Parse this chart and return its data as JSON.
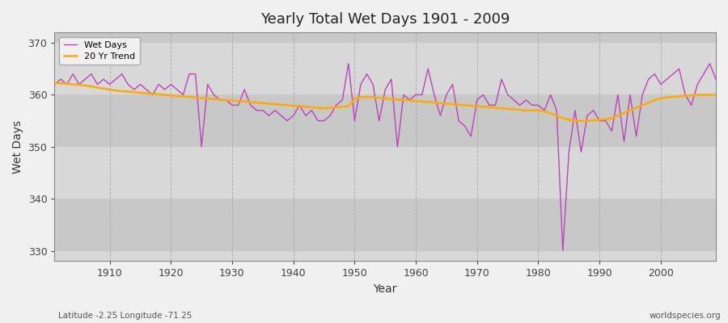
{
  "title": "Yearly Total Wet Days 1901 - 2009",
  "xlabel": "Year",
  "ylabel": "Wet Days",
  "subtitle_left": "Latitude -2.25 Longitude -71.25",
  "subtitle_right": "worldspecies.org",
  "ylim": [
    328,
    372
  ],
  "xlim": [
    1901,
    2009
  ],
  "yticks": [
    330,
    340,
    350,
    360,
    370
  ],
  "xticks": [
    1910,
    1920,
    1930,
    1940,
    1950,
    1960,
    1970,
    1980,
    1990,
    2000
  ],
  "line_color": "#bb44bb",
  "trend_color": "#ffaa00",
  "fig_bg": "#f0f0f0",
  "plot_bg": "#d8d8d8",
  "band_colors": [
    "#d8d8d8",
    "#cccccc"
  ],
  "band_ranges": [
    [
      328,
      330
    ],
    [
      330,
      340
    ],
    [
      340,
      350
    ],
    [
      350,
      360
    ],
    [
      360,
      370
    ],
    [
      370,
      372
    ]
  ],
  "wet_days": [
    362,
    363,
    362,
    364,
    362,
    363,
    364,
    362,
    363,
    362,
    363,
    364,
    362,
    361,
    362,
    361,
    360,
    362,
    361,
    362,
    361,
    360,
    364,
    364,
    350,
    362,
    360,
    359,
    359,
    358,
    358,
    361,
    358,
    357,
    357,
    356,
    357,
    356,
    355,
    356,
    358,
    356,
    357,
    355,
    355,
    356,
    358,
    359,
    366,
    355,
    362,
    364,
    362,
    355,
    361,
    363,
    350,
    360,
    359,
    360,
    360,
    365,
    360,
    356,
    360,
    362,
    355,
    354,
    352,
    359,
    360,
    358,
    358,
    363,
    360,
    359,
    358,
    359,
    358,
    358,
    357,
    360,
    357,
    330,
    349,
    357,
    349,
    356,
    357,
    355,
    355,
    353,
    360,
    351,
    360,
    352,
    360,
    363,
    364,
    362,
    363,
    364,
    365,
    360,
    358,
    362,
    364,
    366,
    363
  ],
  "trend": [
    362.3,
    362.2,
    362.1,
    362.0,
    361.9,
    361.8,
    361.6,
    361.4,
    361.2,
    361.0,
    360.8,
    360.7,
    360.6,
    360.5,
    360.4,
    360.3,
    360.2,
    360.1,
    360.0,
    359.9,
    359.8,
    359.7,
    359.6,
    359.5,
    359.4,
    359.3,
    359.2,
    359.1,
    359.0,
    358.9,
    358.8,
    358.7,
    358.6,
    358.5,
    358.4,
    358.3,
    358.2,
    358.1,
    358.0,
    357.9,
    357.8,
    357.7,
    357.6,
    357.5,
    357.4,
    357.5,
    357.6,
    357.7,
    357.8,
    359.2,
    359.5,
    359.6,
    359.5,
    359.4,
    359.3,
    359.2,
    359.1,
    359.0,
    358.9,
    358.8,
    358.7,
    358.6,
    358.5,
    358.4,
    358.3,
    358.2,
    358.1,
    358.0,
    357.9,
    357.8,
    357.7,
    357.6,
    357.5,
    357.4,
    357.3,
    357.2,
    357.1,
    357.0,
    357.0,
    357.0,
    356.8,
    356.4,
    356.0,
    355.5,
    355.2,
    355.0,
    355.0,
    355.0,
    355.1,
    355.2,
    355.3,
    355.5,
    356.0,
    356.5,
    357.0,
    357.5,
    358.0,
    358.5,
    359.0,
    359.3,
    359.5,
    359.6,
    359.7,
    359.8,
    359.9,
    360.0,
    360.0,
    360.0,
    360.0
  ]
}
